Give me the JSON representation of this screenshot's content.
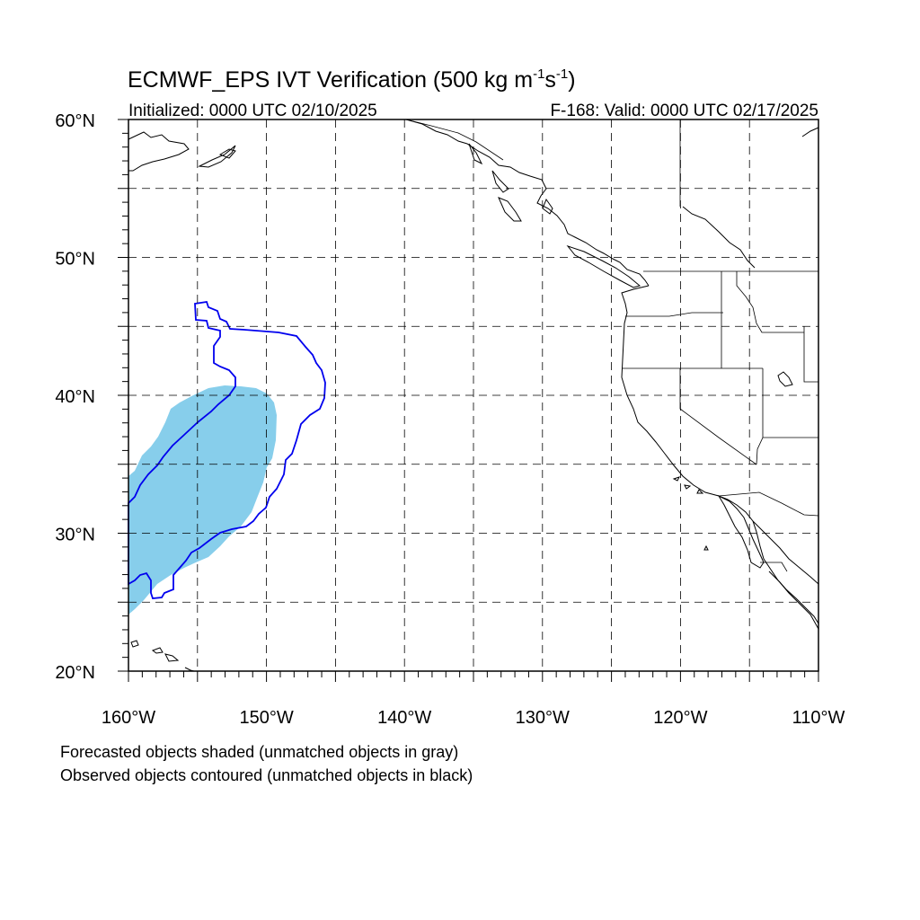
{
  "title": {
    "main": "ECMWF_EPS IVT Verification (500 kg m",
    "sup1": "-1",
    "mid": "s",
    "sup2": "-1",
    "close": ")"
  },
  "subtitle_left": "Initialized: 0000 UTC 02/10/2025",
  "subtitle_right": "F-168: Valid: 0000 UTC 02/17/2025",
  "map": {
    "lon_range": [
      -160,
      -110
    ],
    "lat_range": [
      20,
      60
    ],
    "grid_lon_step": 5,
    "grid_lat_step": 5,
    "grid_style": "dashed",
    "lat_labels": [
      "60°N",
      "50°N",
      "40°N",
      "30°N",
      "20°N"
    ],
    "lon_labels": [
      "160°W",
      "150°W",
      "140°W",
      "130°W",
      "120°W",
      "110°W"
    ],
    "forecast_color": "#87ceeb",
    "observed_color": "#0000ee",
    "coast_color": "#000000"
  },
  "legend": {
    "line1": "Forecasted objects shaded (unmatched objects in gray)",
    "line2": "Observed objects contoured (unmatched objects in black)"
  }
}
